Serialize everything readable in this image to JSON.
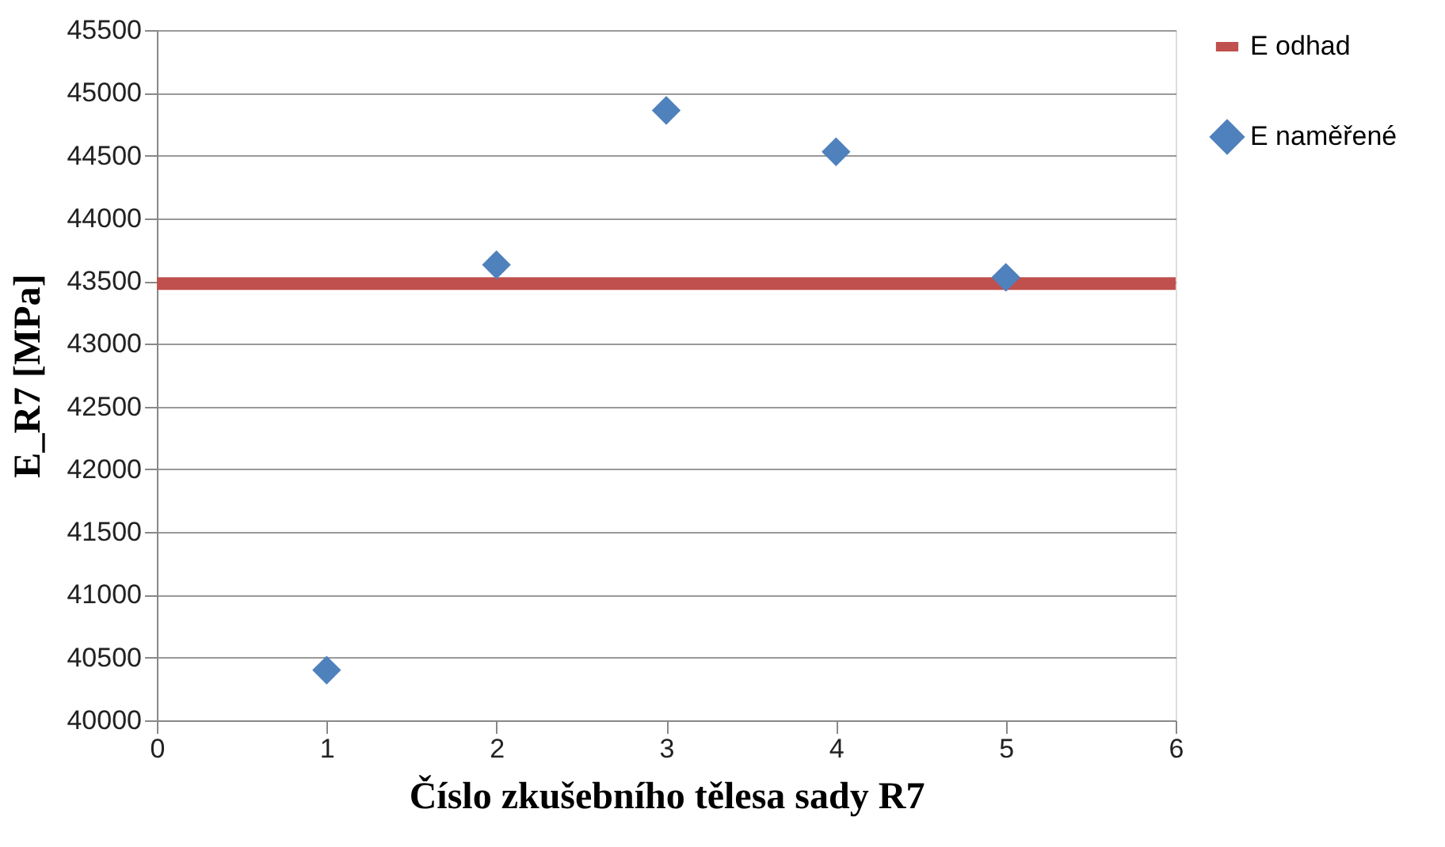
{
  "chart_data": {
    "type": "scatter",
    "xlabel": "Číslo zkušebního tělesa sady R7",
    "ylabel": "E_R7 [MPa]",
    "xlim": [
      0,
      6
    ],
    "xticks": [
      0,
      1,
      2,
      3,
      4,
      5,
      6
    ],
    "ylim": [
      40000,
      45500
    ],
    "yticks": [
      40000,
      40500,
      41000,
      41500,
      42000,
      42500,
      43000,
      43500,
      44000,
      44500,
      45000,
      45500
    ],
    "grid": "y",
    "legend": "right",
    "series": [
      {
        "name": "E odhad",
        "type": "line",
        "color": "#c0504d",
        "marker": "none",
        "line_style": "solid",
        "x": [
          0,
          6
        ],
        "values": [
          43480,
          43480
        ]
      },
      {
        "name": "E naměřené",
        "type": "scatter",
        "color": "#4f81bd",
        "marker": "diamond",
        "x": [
          1,
          2,
          3,
          4,
          5
        ],
        "values": [
          40400,
          43630,
          44860,
          44530,
          43530
        ]
      }
    ]
  }
}
